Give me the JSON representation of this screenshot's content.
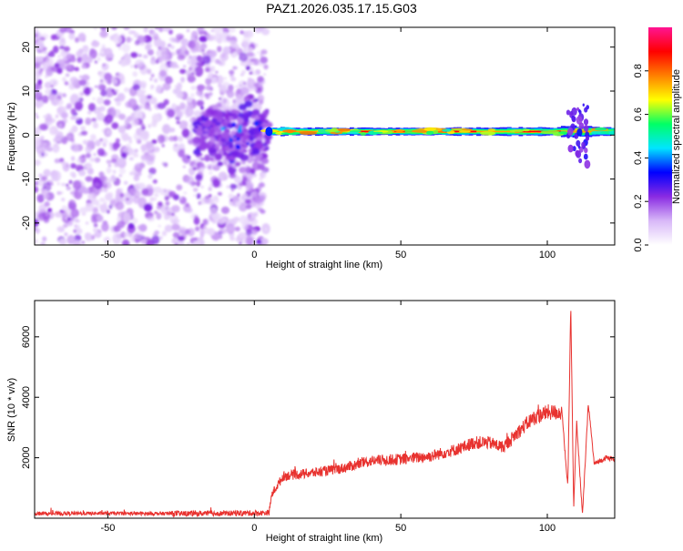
{
  "title": "PAZ1.2026.035.17.15.G03",
  "chart_data": [
    {
      "type": "heatmap",
      "xlabel": "Height of straight line (km)",
      "ylabel": "Frequency (Hz)",
      "xlim": [
        -75,
        123
      ],
      "ylim": [
        -25,
        24.5
      ],
      "xticks": [
        -50,
        0,
        50,
        100
      ],
      "yticks": [
        -20,
        -10,
        0,
        10,
        20
      ],
      "colorbar": {
        "label": "Normalized spectral amplitude",
        "range": [
          0,
          1
        ],
        "ticks": [
          0.0,
          0.2,
          0.4,
          0.6,
          0.8
        ],
        "tick_labels": [
          "0.0",
          "0.2",
          "0.4",
          "0.6",
          "0.8"
        ],
        "colors": [
          "#ffffff",
          "#d8b8f8",
          "#8a2be2",
          "#0000ff",
          "#00e5ff",
          "#00ff66",
          "#ffff00",
          "#ff8000",
          "#ff0000",
          "#ff1493"
        ]
      },
      "signal": {
        "description_values": "narrow band near 0-1 Hz from height 5 km to 123 km, noise scatter below 5 km",
        "band_center_hz": 0.8,
        "band_start_km": 5,
        "band_end_km": 123
      }
    },
    {
      "type": "line",
      "xlabel": "Height of straight line (km)",
      "ylabel": "SNR (10 * v/v)",
      "xlim": [
        -75,
        123
      ],
      "ylim": [
        0,
        7200
      ],
      "xticks": [
        -50,
        0,
        50,
        100
      ],
      "yticks": [
        2000,
        4000,
        6000
      ],
      "color": "#e8322f",
      "series": [
        {
          "name": "SNR",
          "x": [
            -75,
            -50,
            -25,
            0,
            5,
            6,
            10,
            20,
            30,
            40,
            50,
            60,
            70,
            75,
            80,
            85,
            90,
            95,
            100,
            105,
            107,
            108,
            109,
            110,
            112,
            114,
            116,
            118,
            120,
            123
          ],
          "y": [
            150,
            160,
            150,
            170,
            180,
            800,
            1400,
            1500,
            1650,
            1900,
            1950,
            2050,
            2300,
            2500,
            2500,
            2350,
            2850,
            3300,
            3500,
            3500,
            1000,
            7100,
            300,
            3200,
            100,
            3800,
            1800,
            1900,
            2000,
            1950
          ]
        }
      ]
    }
  ]
}
